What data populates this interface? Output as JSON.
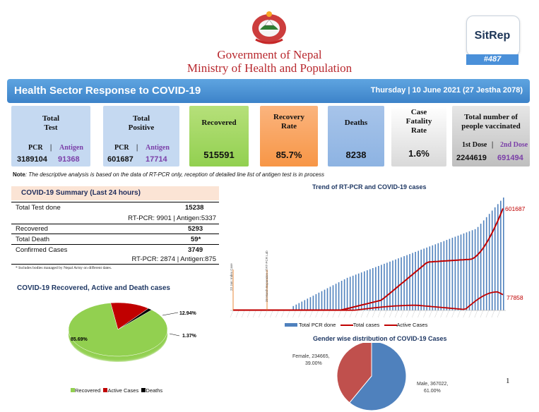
{
  "header": {
    "gov_line1": "Government of Nepal",
    "gov_line2": "Ministry of Health and Population",
    "sitrep_label": "SitRep",
    "sitrep_number": "#487"
  },
  "banner": {
    "title": "Health Sector Response to COVID-19",
    "date": "Thursday | 10 June 2021 (27 Jestha 2078)"
  },
  "cards": {
    "total_test": {
      "label_line1": "Total",
      "label_line2": "Test",
      "pcr_label": "PCR",
      "sep": "|",
      "antigen_label": "Antigen",
      "pcr_value": "3189104",
      "antigen_value": "91368",
      "color": "#c5d9f1"
    },
    "total_positive": {
      "label_line1": "Total",
      "label_line2": "Positive",
      "pcr_label": "PCR",
      "sep": "|",
      "antigen_label": "Antigen",
      "pcr_value": "601687",
      "antigen_value": "17714",
      "color": "#c5d9f1"
    },
    "recovered": {
      "label": "Recovered",
      "value": "515591",
      "color": "#92d050"
    },
    "recovery_rate": {
      "label_line1": "Recovery",
      "label_line2": "Rate",
      "value": "85.7%",
      "color": "#f79646"
    },
    "deaths": {
      "label": "Deaths",
      "value": "8238",
      "color": "#8db3e2"
    },
    "case_fatality": {
      "label_line1": "Case",
      "label_line2": "Fatality",
      "label_line3": "Rate",
      "value": "1.6%",
      "color": "#d9d9d9"
    },
    "vaccinated": {
      "label_line1": "Total number of",
      "label_line2": "people vaccinated",
      "first_dose": "1st Dose",
      "sep": "|",
      "second_dose": "2nd Dose",
      "first_value": "2244619",
      "second_value": "691494",
      "color": "#bfbfbf"
    }
  },
  "note": {
    "bold": "Note",
    "text": ": The descriptive analysis is based on the data of RT-PCR only, reception of detailed line list of antigen test is in process"
  },
  "summary": {
    "title": "COVID-19 Summary (Last 24 hours)",
    "total_test_label": "Total Test done",
    "total_test_value": "15238",
    "total_test_split": "RT-PCR: 9901 | Antigen:5337",
    "recovered_label": "Recovered",
    "recovered_value": "5293",
    "death_label": "Total Death",
    "death_value": "59*",
    "confirmed_label": "Confirmed Cases",
    "confirmed_value": "3749",
    "confirmed_split": "RT-PCR: 2874 | Antigen:875",
    "footnote": "* Includes bodies managed by Nepal Army on different dates."
  },
  "pie_outcomes": {
    "title": "COVID-19 Recovered, Active and Death cases",
    "legend": [
      "Recovered",
      "Active Cases",
      "Deaths"
    ]
  },
  "trend": {
    "title": "Trend of RT-PCR and COVID-19 cases",
    "annotation1": "23 Jan: Index Case",
    "annotation2": "29 March Expansion of RT-PCR Lab",
    "legend": [
      "Total PCR done",
      "Total  cases",
      "Active Cases"
    ]
  },
  "gender_pie": {
    "title": "Gender wise distribution of COVID-19 Cases"
  },
  "page_number": "1",
  "chart_data": [
    {
      "type": "pie",
      "title": "COVID-19 Recovered, Active and Death cases",
      "categories": [
        "Recovered",
        "Active Cases",
        "Deaths"
      ],
      "values": [
        85.69,
        12.94,
        1.37
      ],
      "labels": [
        "85.69%",
        "12.94%",
        "1.37%"
      ],
      "colors": [
        "#92d050",
        "#c00000",
        "#000000"
      ]
    },
    {
      "type": "line",
      "title": "Trend of RT-PCR and COVID-19 cases",
      "series": [
        {
          "name": "Total PCR done",
          "type": "bar",
          "color": "#4f81bd"
        },
        {
          "name": "Total  cases",
          "color": "#c00000",
          "end_label": "601687",
          "end_value": 601687
        },
        {
          "name": "Active Cases",
          "color": "#c00000",
          "end_label": "77858",
          "end_value": 77858
        }
      ]
    },
    {
      "type": "pie",
      "title": "Gender wise distribution of COVID-19 Cases",
      "categories": [
        "Male",
        "Female"
      ],
      "values": [
        367022,
        234665
      ],
      "percents": [
        "61.00%",
        "39.00%"
      ],
      "labels": [
        "Male, 367022,",
        "Female, 234665,"
      ],
      "colors": [
        "#4f81bd",
        "#c0504d"
      ]
    }
  ]
}
